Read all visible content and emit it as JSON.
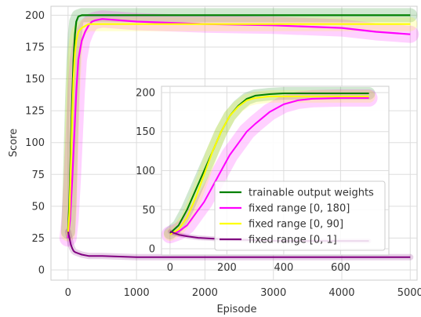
{
  "chart_data": [
    {
      "type": "line",
      "title": "",
      "xlabel": "Episode",
      "ylabel": "Score",
      "xlim": [
        -250,
        5100
      ],
      "ylim": [
        -8,
        207
      ],
      "xticks": [
        0,
        1000,
        2000,
        3000,
        4000,
        5000
      ],
      "yticks": [
        0,
        25,
        50,
        75,
        100,
        125,
        150,
        175,
        200
      ],
      "grid": true,
      "series": [
        {
          "name": "trainable output weights",
          "color": "#008000",
          "x": [
            0,
            20,
            40,
            60,
            80,
            100,
            120,
            150,
            200,
            300,
            400,
            1000,
            2000,
            3000,
            4000,
            5000
          ],
          "y": [
            30,
            55,
            95,
            135,
            165,
            185,
            195,
            199,
            200,
            200,
            200,
            200,
            200,
            200,
            200,
            200
          ]
        },
        {
          "name": "fixed range [0, 180]",
          "color": "#ff00ff",
          "x": [
            0,
            30,
            60,
            90,
            120,
            150,
            200,
            250,
            300,
            350,
            400,
            500,
            1000,
            2000,
            3000,
            4000,
            4500,
            5000
          ],
          "y": [
            25,
            40,
            70,
            105,
            140,
            165,
            180,
            187,
            192,
            195,
            196,
            197,
            195,
            193,
            192,
            190,
            187,
            185
          ]
        },
        {
          "name": "fixed range [0, 90]",
          "color": "#ffff00",
          "x": [
            0,
            20,
            40,
            60,
            80,
            100,
            120,
            150,
            200,
            300,
            1000,
            2000,
            3000,
            4000,
            5000
          ],
          "y": [
            28,
            45,
            80,
            120,
            150,
            170,
            180,
            187,
            190,
            193,
            193,
            193,
            193,
            193,
            193
          ]
        },
        {
          "name": "fixed range [0, 1]",
          "color": "#800080",
          "x": [
            0,
            20,
            40,
            60,
            80,
            100,
            150,
            200,
            300,
            500,
            1000,
            2000,
            3000,
            4000,
            5000
          ],
          "y": [
            30,
            25,
            20,
            17,
            15,
            14,
            13,
            12,
            11,
            11,
            10,
            10,
            10,
            10,
            10
          ]
        }
      ]
    },
    {
      "type": "line",
      "title": "",
      "xlabel": "",
      "ylabel": "",
      "xlim": [
        -30,
        770
      ],
      "ylim": [
        -8,
        208
      ],
      "xticks": [
        0,
        200,
        400,
        600
      ],
      "yticks": [
        0,
        50,
        100,
        150,
        200
      ],
      "grid": true,
      "legend": "lower-right",
      "series": [
        {
          "name": "trainable output weights",
          "color": "#008000",
          "x": [
            0,
            30,
            60,
            90,
            120,
            150,
            180,
            210,
            240,
            270,
            300,
            350,
            400,
            500,
            600,
            700
          ],
          "y": [
            20,
            30,
            50,
            75,
            100,
            125,
            150,
            170,
            183,
            192,
            196,
            198,
            199,
            199,
            199,
            199
          ]
        },
        {
          "name": "fixed range [0, 180]",
          "color": "#ff00ff",
          "x": [
            0,
            30,
            60,
            90,
            120,
            150,
            180,
            210,
            240,
            270,
            300,
            350,
            400,
            450,
            500,
            600,
            700
          ],
          "y": [
            18,
            22,
            30,
            45,
            60,
            80,
            100,
            120,
            135,
            150,
            160,
            175,
            185,
            190,
            192,
            193,
            193
          ]
        },
        {
          "name": "fixed range [0, 90]",
          "color": "#ffff00",
          "x": [
            0,
            30,
            60,
            90,
            120,
            150,
            180,
            210,
            240,
            270,
            300,
            350,
            400,
            500,
            600,
            700
          ],
          "y": [
            18,
            25,
            40,
            65,
            95,
            125,
            150,
            170,
            182,
            190,
            193,
            195,
            195,
            195,
            195,
            195
          ]
        },
        {
          "name": "fixed range [0, 1]",
          "color": "#800080",
          "x": [
            0,
            30,
            60,
            100,
            150,
            200,
            300,
            400,
            500,
            600,
            700
          ],
          "y": [
            22,
            18,
            16,
            14,
            13,
            12,
            11,
            10,
            10,
            10,
            10
          ]
        }
      ]
    }
  ]
}
